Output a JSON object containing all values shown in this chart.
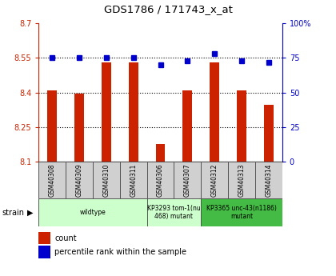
{
  "title": "GDS1786 / 171743_x_at",
  "samples": [
    "GSM40308",
    "GSM40309",
    "GSM40310",
    "GSM40311",
    "GSM40306",
    "GSM40307",
    "GSM40312",
    "GSM40313",
    "GSM40314"
  ],
  "counts": [
    8.41,
    8.395,
    8.53,
    8.53,
    8.175,
    8.41,
    8.53,
    8.41,
    8.345
  ],
  "percentiles": [
    75,
    75,
    75,
    75,
    70,
    73,
    78,
    73,
    72
  ],
  "ylim_left": [
    8.1,
    8.7
  ],
  "ylim_right": [
    0,
    100
  ],
  "yticks_left": [
    8.1,
    8.25,
    8.4,
    8.55,
    8.7
  ],
  "yticks_right": [
    0,
    25,
    50,
    75,
    100
  ],
  "ytick_labels_left": [
    "8.1",
    "8.25",
    "8.4",
    "8.55",
    "8.7"
  ],
  "ytick_labels_right": [
    "0",
    "25",
    "50",
    "75",
    "100%"
  ],
  "hlines": [
    8.25,
    8.4,
    8.55
  ],
  "bar_color": "#cc2200",
  "dot_color": "#0000cc",
  "strain_groups": [
    {
      "label": "wildtype",
      "start": 0,
      "end": 4,
      "color": "#ccffcc"
    },
    {
      "label": "KP3293 tom-1(nu\n468) mutant",
      "start": 4,
      "end": 6,
      "color": "#ccffcc"
    },
    {
      "label": "KP3365 unc-43(n1186)\nmutant",
      "start": 6,
      "end": 9,
      "color": "#44bb44"
    }
  ],
  "legend_count_label": "count",
  "legend_pct_label": "percentile rank within the sample",
  "strain_label": "strain",
  "bar_width": 0.35,
  "base_value": 8.1,
  "bg_color": "#ffffff"
}
